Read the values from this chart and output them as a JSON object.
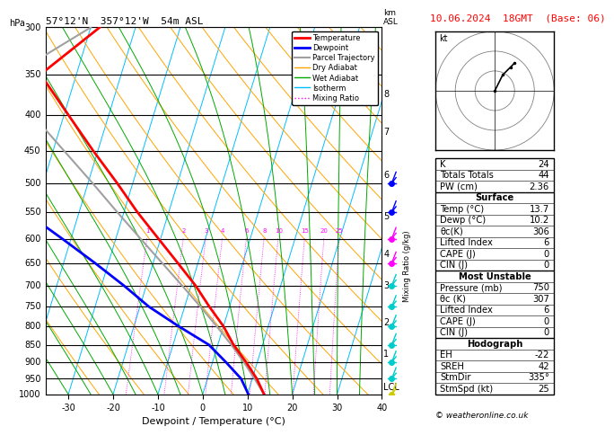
{
  "title_left": "57°12'N  357°12'W  54m ASL",
  "title_right": "10.06.2024  18GMT  (Base: 06)",
  "xlabel": "Dewpoint / Temperature (°C)",
  "pressure_levels": [
    300,
    350,
    400,
    450,
    500,
    550,
    600,
    650,
    700,
    750,
    800,
    850,
    900,
    950,
    1000
  ],
  "temp_data": {
    "pressure": [
      1000,
      950,
      900,
      850,
      800,
      750,
      700,
      650,
      600,
      550,
      500,
      450,
      400,
      350,
      300
    ],
    "temperature": [
      13.7,
      11.0,
      7.5,
      3.5,
      0.0,
      -4.5,
      -9.0,
      -14.5,
      -20.5,
      -27.0,
      -33.5,
      -41.0,
      -49.0,
      -58.0,
      -48.0
    ]
  },
  "dewp_data": {
    "pressure": [
      1000,
      950,
      900,
      850,
      800,
      750,
      700,
      650,
      600,
      550,
      500,
      450,
      400,
      350,
      300
    ],
    "dewpoint": [
      10.2,
      7.5,
      3.0,
      -2.0,
      -10.0,
      -18.0,
      -25.0,
      -33.0,
      -42.0,
      -52.0,
      -62.0,
      -72.0,
      -65.0,
      -70.0,
      -65.0
    ]
  },
  "parcel_data": {
    "pressure": [
      1000,
      950,
      900,
      850,
      800,
      750,
      700,
      650,
      600,
      550,
      500,
      450,
      400,
      350,
      300
    ],
    "temperature": [
      13.7,
      10.5,
      7.0,
      3.0,
      -1.5,
      -6.5,
      -12.0,
      -18.0,
      -24.5,
      -31.5,
      -39.0,
      -47.5,
      -57.0,
      -64.0,
      -50.0
    ]
  },
  "xmin": -35,
  "xmax": 40,
  "skew_factor": 25,
  "legend_entries": [
    {
      "label": "Temperature",
      "color": "#FF0000",
      "lw": 2,
      "ls": "-"
    },
    {
      "label": "Dewpoint",
      "color": "#0000FF",
      "lw": 2,
      "ls": "-"
    },
    {
      "label": "Parcel Trajectory",
      "color": "#A0A0A0",
      "lw": 1.5,
      "ls": "-"
    },
    {
      "label": "Dry Adiabat",
      "color": "#FFA500",
      "lw": 1,
      "ls": "-"
    },
    {
      "label": "Wet Adiabat",
      "color": "#00AA00",
      "lw": 1,
      "ls": "-"
    },
    {
      "label": "Isotherm",
      "color": "#00BFFF",
      "lw": 1,
      "ls": "-"
    },
    {
      "label": "Mixing Ratio",
      "color": "#FF00FF",
      "lw": 1,
      "ls": ":"
    }
  ],
  "mixing_ratio_values": [
    1,
    2,
    3,
    4,
    6,
    8,
    10,
    15,
    20,
    25
  ],
  "isotherm_color": "#00BFFF",
  "dry_adiabat_color": "#FFA500",
  "wet_adiabat_color": "#00AA00",
  "mixing_ratio_color": "#FF00FF",
  "km_ticks": [
    {
      "p": 373,
      "label": "8"
    },
    {
      "p": 423,
      "label": "7"
    },
    {
      "p": 487,
      "label": "6"
    },
    {
      "p": 558,
      "label": "5"
    },
    {
      "p": 632,
      "label": "4"
    },
    {
      "p": 700,
      "label": "3"
    },
    {
      "p": 790,
      "label": "2"
    },
    {
      "p": 875,
      "label": "1"
    },
    {
      "p": 976,
      "label": "LCL"
    }
  ],
  "wind_barb_data": [
    {
      "p": 1000,
      "color": "#CCCC00"
    },
    {
      "p": 950,
      "color": "#00CCCC"
    },
    {
      "p": 900,
      "color": "#00CCCC"
    },
    {
      "p": 850,
      "color": "#00CCCC"
    },
    {
      "p": 800,
      "color": "#00CCCC"
    },
    {
      "p": 750,
      "color": "#00CCCC"
    },
    {
      "p": 700,
      "color": "#00CCCC"
    },
    {
      "p": 650,
      "color": "#FF00FF"
    },
    {
      "p": 600,
      "color": "#FF00FF"
    },
    {
      "p": 550,
      "color": "#0000FF"
    },
    {
      "p": 500,
      "color": "#0000FF"
    }
  ],
  "info_rows": [
    {
      "label": "K",
      "value": "24",
      "header": false
    },
    {
      "label": "Totals Totals",
      "value": "44",
      "header": false
    },
    {
      "label": "PW (cm)",
      "value": "2.36",
      "header": false
    },
    {
      "label": "Surface",
      "value": null,
      "header": true
    },
    {
      "label": "Temp (°C)",
      "value": "13.7",
      "header": false
    },
    {
      "label": "Dewp (°C)",
      "value": "10.2",
      "header": false
    },
    {
      "label": "θc(K)",
      "value": "306",
      "header": false
    },
    {
      "label": "Lifted Index",
      "value": "6",
      "header": false
    },
    {
      "label": "CAPE (J)",
      "value": "0",
      "header": false
    },
    {
      "label": "CIN (J)",
      "value": "0",
      "header": false
    },
    {
      "label": "Most Unstable",
      "value": null,
      "header": true
    },
    {
      "label": "Pressure (mb)",
      "value": "750",
      "header": false
    },
    {
      "label": "θc (K)",
      "value": "307",
      "header": false
    },
    {
      "label": "Lifted Index",
      "value": "6",
      "header": false
    },
    {
      "label": "CAPE (J)",
      "value": "0",
      "header": false
    },
    {
      "label": "CIN (J)",
      "value": "0",
      "header": false
    },
    {
      "label": "Hodograph",
      "value": null,
      "header": true
    },
    {
      "label": "EH",
      "value": "-22",
      "header": false
    },
    {
      "label": "SREH",
      "value": "42",
      "header": false
    },
    {
      "label": "StmDir",
      "value": "335°",
      "header": false
    },
    {
      "label": "StmSpd (kt)",
      "value": "25",
      "header": false
    }
  ]
}
